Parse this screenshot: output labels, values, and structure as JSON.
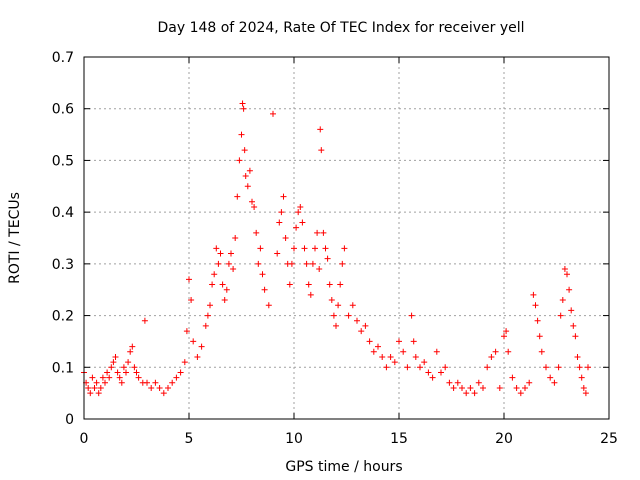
{
  "chart_data": {
    "type": "scatter",
    "title": "Day 148 of 2024, Rate Of TEC Index for receiver yell",
    "xlabel": "GPS time / hours",
    "ylabel": "ROTI / TECUs",
    "xlim": [
      0,
      25
    ],
    "ylim": [
      0,
      0.7
    ],
    "xticks": [
      0,
      5,
      10,
      15,
      20,
      25
    ],
    "yticks": [
      0,
      0.1,
      0.2,
      0.3,
      0.4,
      0.5,
      0.6,
      0.7
    ],
    "xtick_labels": [
      "0",
      "5",
      "10",
      "15",
      "20",
      "25"
    ],
    "ytick_labels": [
      "0",
      "0.1",
      "0.2",
      "0.3",
      "0.4",
      "0.5",
      "0.6",
      "0.7"
    ],
    "grid": true,
    "marker": "+",
    "color": "#ff0000",
    "series": [
      {
        "name": "ROTI",
        "x": [
          0.0,
          0.1,
          0.2,
          0.3,
          0.4,
          0.5,
          0.6,
          0.7,
          0.8,
          0.9,
          1.0,
          1.1,
          1.2,
          1.3,
          1.4,
          1.5,
          1.6,
          1.7,
          1.8,
          1.9,
          2.0,
          2.1,
          2.2,
          2.3,
          2.4,
          2.5,
          2.6,
          2.8,
          2.9,
          3.0,
          3.2,
          3.4,
          3.6,
          3.8,
          4.0,
          4.2,
          4.4,
          4.6,
          4.8,
          4.9,
          5.0,
          5.1,
          5.2,
          5.4,
          5.6,
          5.8,
          5.9,
          6.0,
          6.1,
          6.2,
          6.3,
          6.4,
          6.5,
          6.6,
          6.7,
          6.8,
          6.9,
          7.0,
          7.1,
          7.2,
          7.3,
          7.4,
          7.5,
          7.55,
          7.6,
          7.65,
          7.7,
          7.8,
          7.9,
          8.0,
          8.1,
          8.2,
          8.3,
          8.4,
          8.5,
          8.6,
          8.8,
          9.0,
          9.2,
          9.3,
          9.4,
          9.5,
          9.6,
          9.7,
          9.8,
          9.9,
          10.0,
          10.1,
          10.2,
          10.3,
          10.4,
          10.5,
          10.6,
          10.7,
          10.8,
          10.9,
          11.0,
          11.1,
          11.2,
          11.25,
          11.3,
          11.4,
          11.5,
          11.6,
          11.7,
          11.8,
          11.9,
          12.0,
          12.1,
          12.2,
          12.3,
          12.4,
          12.6,
          12.8,
          13.0,
          13.2,
          13.4,
          13.6,
          13.8,
          14.0,
          14.2,
          14.4,
          14.6,
          14.8,
          15.0,
          15.2,
          15.4,
          15.6,
          15.7,
          15.8,
          16.0,
          16.2,
          16.4,
          16.6,
          16.8,
          17.0,
          17.2,
          17.4,
          17.6,
          17.8,
          18.0,
          18.2,
          18.4,
          18.6,
          18.8,
          19.0,
          19.2,
          19.4,
          19.6,
          19.8,
          20.0,
          20.1,
          20.2,
          20.4,
          20.6,
          20.8,
          21.0,
          21.2,
          21.4,
          21.5,
          21.6,
          21.7,
          21.8,
          22.0,
          22.2,
          22.4,
          22.6,
          22.7,
          22.8,
          22.9,
          23.0,
          23.1,
          23.2,
          23.3,
          23.4,
          23.5,
          23.6,
          23.7,
          23.8,
          23.9,
          24.0
        ],
        "y": [
          0.09,
          0.07,
          0.06,
          0.05,
          0.08,
          0.06,
          0.07,
          0.05,
          0.06,
          0.08,
          0.07,
          0.09,
          0.08,
          0.1,
          0.11,
          0.12,
          0.09,
          0.08,
          0.07,
          0.1,
          0.09,
          0.11,
          0.13,
          0.14,
          0.1,
          0.09,
          0.08,
          0.07,
          0.19,
          0.07,
          0.06,
          0.07,
          0.06,
          0.05,
          0.06,
          0.07,
          0.08,
          0.09,
          0.11,
          0.17,
          0.27,
          0.23,
          0.15,
          0.12,
          0.14,
          0.18,
          0.2,
          0.22,
          0.26,
          0.28,
          0.33,
          0.3,
          0.32,
          0.26,
          0.23,
          0.25,
          0.3,
          0.32,
          0.29,
          0.35,
          0.43,
          0.5,
          0.55,
          0.61,
          0.6,
          0.52,
          0.47,
          0.45,
          0.48,
          0.42,
          0.41,
          0.36,
          0.3,
          0.33,
          0.28,
          0.25,
          0.22,
          0.59,
          0.32,
          0.38,
          0.4,
          0.43,
          0.35,
          0.3,
          0.26,
          0.3,
          0.33,
          0.37,
          0.4,
          0.41,
          0.38,
          0.33,
          0.3,
          0.26,
          0.24,
          0.3,
          0.33,
          0.36,
          0.29,
          0.56,
          0.52,
          0.36,
          0.33,
          0.31,
          0.26,
          0.23,
          0.2,
          0.18,
          0.22,
          0.26,
          0.3,
          0.33,
          0.2,
          0.22,
          0.19,
          0.17,
          0.18,
          0.15,
          0.13,
          0.14,
          0.12,
          0.1,
          0.12,
          0.11,
          0.15,
          0.13,
          0.1,
          0.2,
          0.15,
          0.12,
          0.1,
          0.11,
          0.09,
          0.08,
          0.13,
          0.09,
          0.1,
          0.07,
          0.06,
          0.07,
          0.06,
          0.05,
          0.06,
          0.05,
          0.07,
          0.06,
          0.1,
          0.12,
          0.13,
          0.06,
          0.16,
          0.17,
          0.13,
          0.08,
          0.06,
          0.05,
          0.06,
          0.07,
          0.24,
          0.22,
          0.19,
          0.16,
          0.13,
          0.1,
          0.08,
          0.07,
          0.1,
          0.2,
          0.23,
          0.29,
          0.28,
          0.25,
          0.21,
          0.18,
          0.16,
          0.12,
          0.1,
          0.08,
          0.06,
          0.05,
          0.1
        ]
      }
    ]
  }
}
